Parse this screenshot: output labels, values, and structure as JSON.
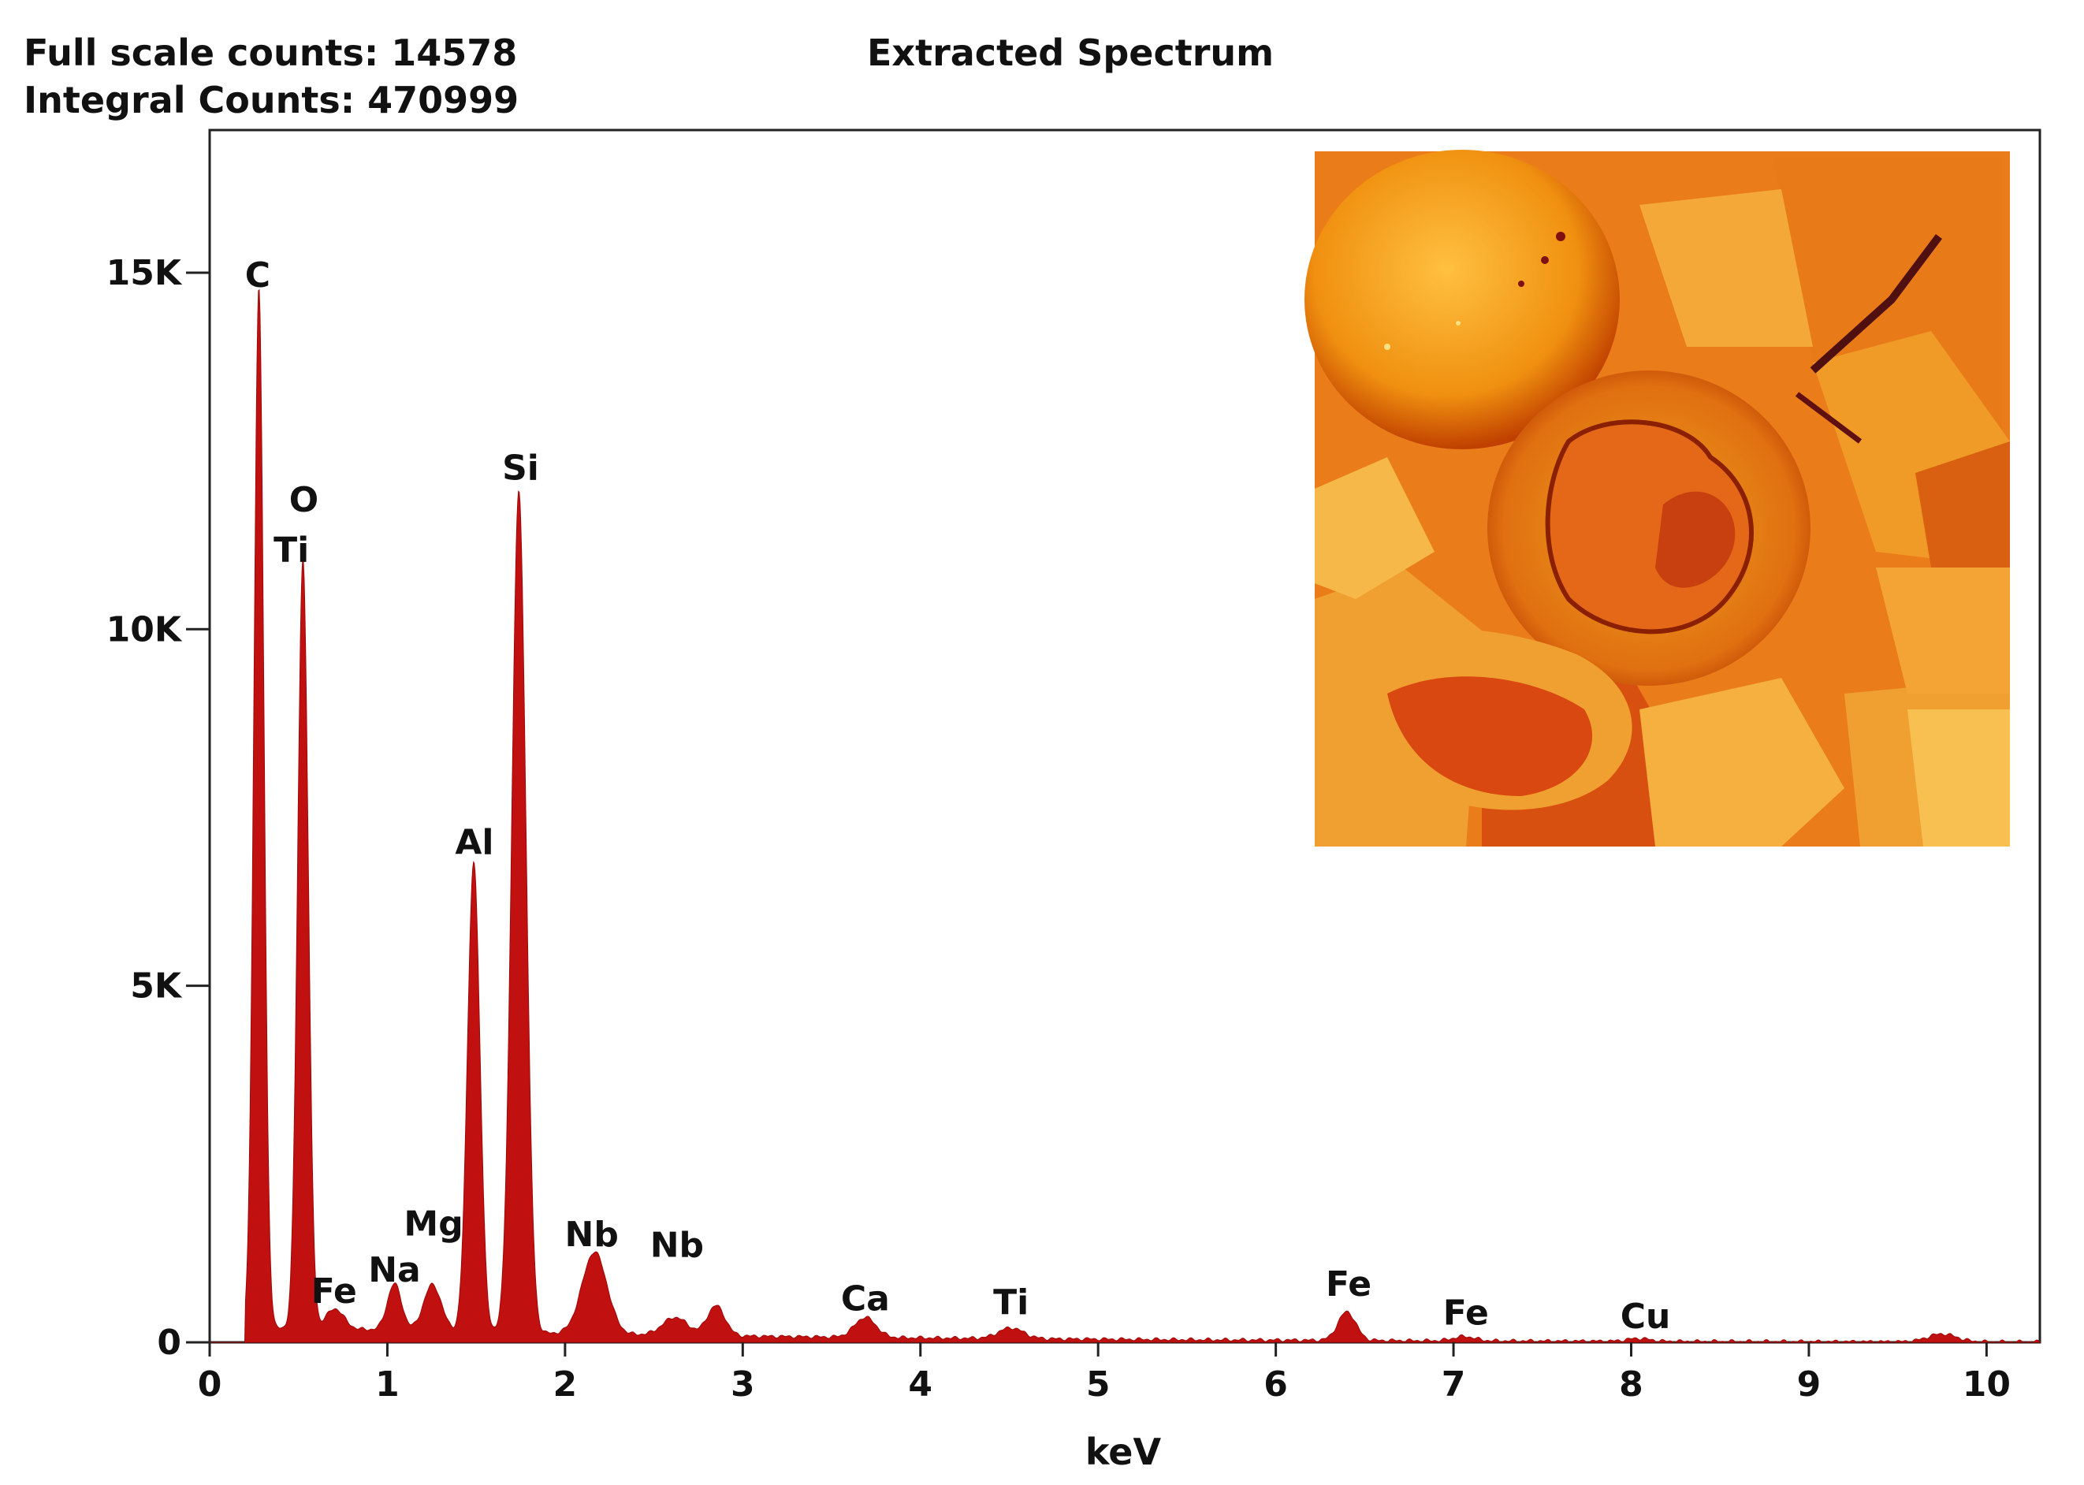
{
  "header": {
    "full_scale": "Full scale counts: 14578",
    "integral": "Integral Counts: 470999"
  },
  "chart_data": {
    "type": "area",
    "title": "Extracted Spectrum",
    "xlabel": "keV",
    "ylabel": "",
    "xlim": [
      0,
      10.3
    ],
    "ylim": [
      0,
      17000
    ],
    "xticks": [
      0,
      1,
      2,
      3,
      4,
      5,
      6,
      7,
      8,
      9,
      10
    ],
    "yticks": [
      {
        "value": 0,
        "label": "0"
      },
      {
        "value": 5000,
        "label": "5K"
      },
      {
        "value": 10000,
        "label": "10K"
      },
      {
        "value": 15000,
        "label": "15K"
      }
    ],
    "grid": false,
    "legend": "none",
    "color": "#c01010",
    "baseline": 200,
    "peaks": [
      {
        "x": 0.277,
        "y": 14578,
        "width": 0.028
      },
      {
        "x": 0.525,
        "y": 10800,
        "width": 0.03
      },
      {
        "x": 0.705,
        "y": 280,
        "width": 0.05
      },
      {
        "x": 1.04,
        "y": 650,
        "width": 0.04
      },
      {
        "x": 1.254,
        "y": 650,
        "width": 0.05
      },
      {
        "x": 1.486,
        "y": 6600,
        "width": 0.035
      },
      {
        "x": 1.74,
        "y": 11800,
        "width": 0.04
      },
      {
        "x": 2.166,
        "y": 1150,
        "width": 0.07
      },
      {
        "x": 2.62,
        "y": 250,
        "width": 0.07
      },
      {
        "x": 2.85,
        "y": 420,
        "width": 0.05
      },
      {
        "x": 3.69,
        "y": 280,
        "width": 0.06
      },
      {
        "x": 4.51,
        "y": 150,
        "width": 0.07
      },
      {
        "x": 6.4,
        "y": 400,
        "width": 0.05
      },
      {
        "x": 7.06,
        "y": 60,
        "width": 0.06
      },
      {
        "x": 8.04,
        "y": 40,
        "width": 0.06
      },
      {
        "x": 9.75,
        "y": 110,
        "width": 0.08
      }
    ],
    "annotations": [
      {
        "text": "C",
        "x": 0.27,
        "y": 14800
      },
      {
        "text": "O",
        "x": 0.53,
        "y": 11650
      },
      {
        "text": "Ti",
        "x": 0.46,
        "y": 10950
      },
      {
        "text": "Fe",
        "x": 0.7,
        "y": 550
      },
      {
        "text": "Na",
        "x": 1.04,
        "y": 850
      },
      {
        "text": "Mg",
        "x": 1.26,
        "y": 1500
      },
      {
        "text": "Al",
        "x": 1.49,
        "y": 6850
      },
      {
        "text": "Si",
        "x": 1.75,
        "y": 12100
      },
      {
        "text": "Nb",
        "x": 2.15,
        "y": 1350
      },
      {
        "text": "Nb",
        "x": 2.63,
        "y": 1200
      },
      {
        "text": "Ca",
        "x": 3.69,
        "y": 450
      },
      {
        "text": "Ti",
        "x": 4.51,
        "y": 400
      },
      {
        "text": "Fe",
        "x": 6.41,
        "y": 650
      },
      {
        "text": "Fe",
        "x": 7.07,
        "y": 250
      },
      {
        "text": "Cu",
        "x": 8.08,
        "y": 200
      }
    ]
  }
}
